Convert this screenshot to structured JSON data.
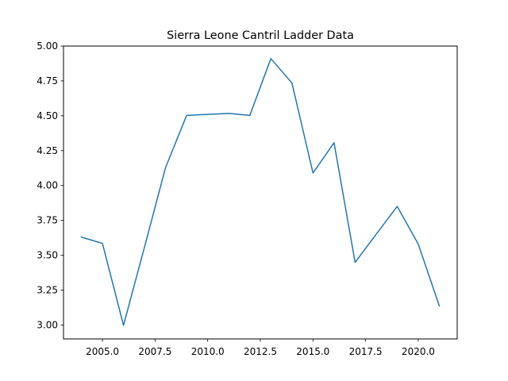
{
  "chart_data": {
    "type": "line",
    "title": "Sierra Leone Cantril Ladder Data",
    "xlabel": "",
    "ylabel": "",
    "xlim": [
      2003.15,
      2021.85
    ],
    "ylim": [
      2.9,
      5.0
    ],
    "grid": false,
    "x_ticks": [
      2005.0,
      2007.5,
      2010.0,
      2012.5,
      2015.0,
      2017.5,
      2020.0
    ],
    "x_tick_labels": [
      "2005.0",
      "2007.5",
      "2010.0",
      "2012.5",
      "2015.0",
      "2017.5",
      "2020.0"
    ],
    "y_ticks": [
      3.0,
      3.25,
      3.5,
      3.75,
      4.0,
      4.25,
      4.5,
      4.75,
      5.0
    ],
    "y_tick_labels": [
      "3.00",
      "3.25",
      "3.50",
      "3.75",
      "4.00",
      "4.25",
      "4.50",
      "4.75",
      "5.00"
    ],
    "series": [
      {
        "color": "#1f77b4",
        "x": [
          2004,
          2005,
          2006,
          2007,
          2008,
          2009,
          2010,
          2011,
          2012,
          2013,
          2014,
          2015,
          2016,
          2017,
          2018,
          2019,
          2020,
          2021
        ],
        "y": [
          3.63,
          3.585,
          2.998,
          3.56,
          4.13,
          4.503,
          4.51,
          4.517,
          4.503,
          4.91,
          4.735,
          4.09,
          4.307,
          3.449,
          3.65,
          3.85,
          3.58,
          3.137
        ]
      }
    ]
  }
}
